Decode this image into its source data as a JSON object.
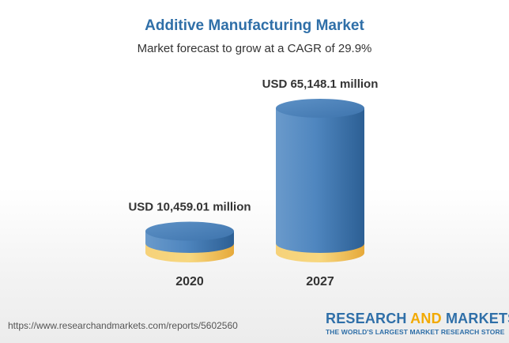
{
  "title": "Additive Manufacturing Market",
  "subtitle": "Market forecast to grow at a CAGR of 29.9%",
  "footer": {
    "url": "https://www.researchandmarkets.com/reports/5602560",
    "brand_part1": "RESEARCH",
    "brand_part2": "AND",
    "brand_part3": "MARKETS",
    "brand_tagline": "THE WORLD'S LARGEST MARKET RESEARCH STORE"
  },
  "chart_data": {
    "type": "bar",
    "title": "Additive Manufacturing Market",
    "subtitle": "Market forecast to grow at a CAGR of 29.9%",
    "categories": [
      "2020",
      "2027"
    ],
    "values": [
      10459.01,
      65148.1
    ],
    "value_labels": [
      "USD 10,459.01 million",
      "USD 65,148.1 million"
    ],
    "unit": "USD million",
    "series": [
      {
        "values": [
          10459.01,
          65148.1
        ]
      }
    ],
    "colors": {
      "base": "#f2c14e",
      "bar": "#4a7fb5",
      "title": "#2f6fa8"
    },
    "grid": false,
    "legend": "none"
  }
}
